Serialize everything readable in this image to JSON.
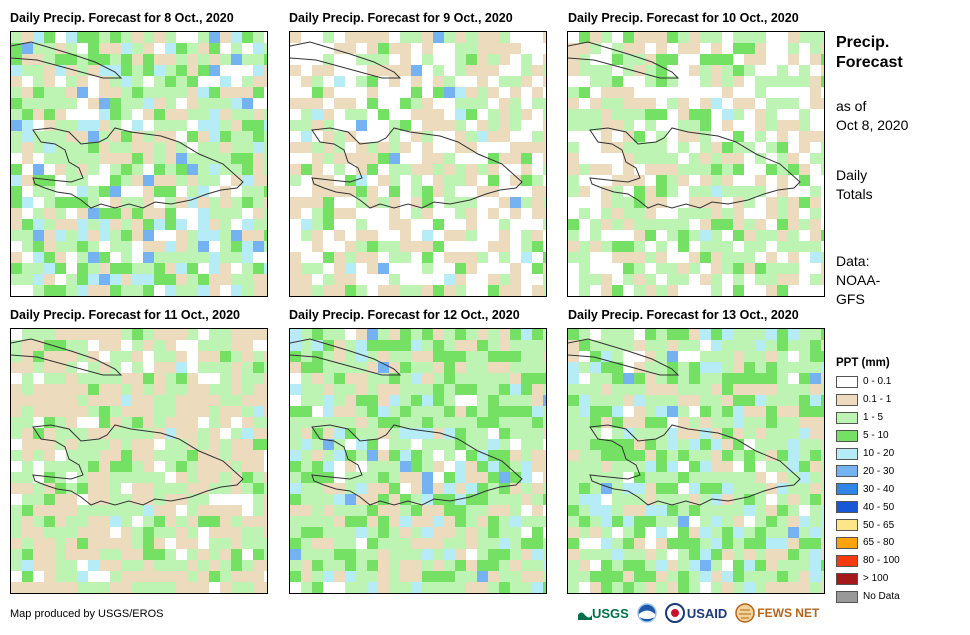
{
  "panels": [
    {
      "title": "Daily Precip. Forecast for 8 Oct., 2020"
    },
    {
      "title": "Daily Precip. Forecast for 9 Oct., 2020"
    },
    {
      "title": "Daily Precip. Forecast for 10 Oct., 2020"
    },
    {
      "title": "Daily Precip. Forecast for 11 Oct., 2020"
    },
    {
      "title": "Daily Precip. Forecast for 12 Oct., 2020"
    },
    {
      "title": "Daily Precip. Forecast for 13 Oct., 2020"
    }
  ],
  "side": {
    "title_line1": "Precip.",
    "title_line2": "Forecast",
    "asof_line1": "as of",
    "asof_line2": "Oct 8, 2020",
    "totals_line1": "Daily",
    "totals_line2": "Totals",
    "data_line1": "Data:",
    "data_line2": "NOAA-",
    "data_line3": "GFS"
  },
  "legend": {
    "title": "PPT (mm)",
    "items": [
      {
        "label": "0 - 0.1",
        "color": "#ffffff"
      },
      {
        "label": "0.1 - 1",
        "color": "#ecdcbd"
      },
      {
        "label": "1 - 5",
        "color": "#bdf4b4"
      },
      {
        "label": "5 - 10",
        "color": "#74e064"
      },
      {
        "label": "10 - 20",
        "color": "#b5ecf6"
      },
      {
        "label": "20 - 30",
        "color": "#74b2f2"
      },
      {
        "label": "30 - 40",
        "color": "#2f86e6"
      },
      {
        "label": "40 - 50",
        "color": "#1658d6"
      },
      {
        "label": "50 - 65",
        "color": "#fde58a"
      },
      {
        "label": "65 - 80",
        "color": "#fca20a"
      },
      {
        "label": "80 - 100",
        "color": "#f73b10"
      },
      {
        "label": "> 100",
        "color": "#a6191b"
      },
      {
        "label": "No Data",
        "color": "#999999"
      }
    ]
  },
  "footer": {
    "credit": "Map produced by USGS/EROS",
    "logo_usgs": "USGS",
    "logo_usaid": "USAID",
    "logo_fewsnet": "FEWS NET"
  },
  "icons": [
    "usgs-logo",
    "noaa-logo",
    "usaid-logo",
    "fewsnet-logo"
  ]
}
